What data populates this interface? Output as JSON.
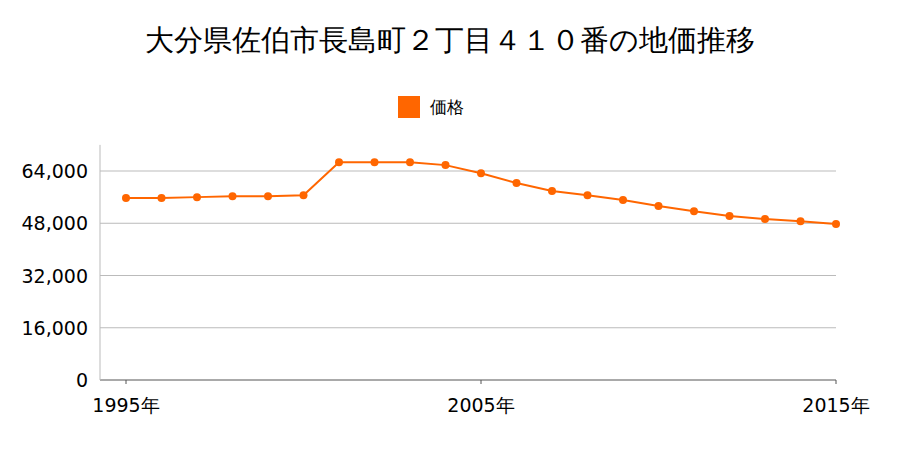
{
  "chart_data": {
    "type": "line",
    "title": "大分県佐伯市長島町２丁目４１０番の地価推移",
    "x": [
      1995,
      1996,
      1997,
      1998,
      1999,
      2000,
      2001,
      2002,
      2003,
      2004,
      2005,
      2006,
      2007,
      2008,
      2009,
      2010,
      2011,
      2012,
      2013,
      2014,
      2015
    ],
    "series": [
      {
        "name": "価格",
        "color": "#ff6600",
        "marker": "circle",
        "values": [
          55700,
          55700,
          56000,
          56300,
          56300,
          56600,
          66700,
          66700,
          66700,
          65800,
          63300,
          60300,
          57900,
          56600,
          55100,
          53300,
          51700,
          50200,
          49300,
          48600,
          47800
        ]
      }
    ],
    "xlim": [
      1995,
      2015
    ],
    "xticks": [
      {
        "value": 1995,
        "label": "1995年"
      },
      {
        "value": 2005,
        "label": "2005年"
      },
      {
        "value": 2015,
        "label": "2015年"
      }
    ],
    "ylim": [
      0,
      72000
    ],
    "yticks": [
      0,
      {
        "value": 16000,
        "label": "16,000"
      },
      {
        "value": 32000,
        "label": "32,000"
      },
      {
        "value": 48000,
        "label": "48,000"
      },
      {
        "value": 64000,
        "label": "64,000"
      }
    ],
    "grid": true,
    "legend": "top"
  }
}
